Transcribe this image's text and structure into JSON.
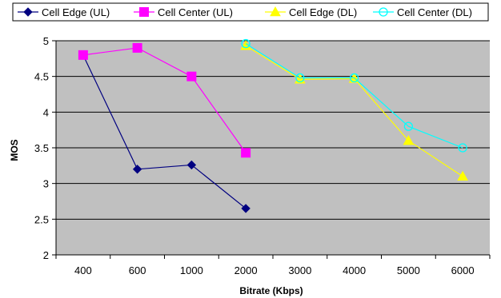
{
  "chart_data": {
    "type": "line",
    "categories": [
      "400",
      "600",
      "1000",
      "2000",
      "3000",
      "4000",
      "5000",
      "6000"
    ],
    "xlabel": "Bitrate (Kbps)",
    "ylabel": "MOS",
    "ylim": [
      2,
      5
    ],
    "yticks": [
      "2",
      "2.5",
      "3",
      "3.5",
      "4",
      "4.5",
      "5"
    ],
    "grid": true,
    "legend_position": "top",
    "plot_background": "#c0c0c0",
    "series": [
      {
        "name": "Cell Edge (UL)",
        "color": "#000080",
        "marker": "diamond-filled",
        "values": [
          4.8,
          3.2,
          3.26,
          2.65,
          null,
          null,
          null,
          null
        ]
      },
      {
        "name": "Cell Center (UL)",
        "color": "#ff00ff",
        "marker": "square-filled",
        "values": [
          4.8,
          4.9,
          4.5,
          3.43,
          null,
          null,
          null,
          null
        ]
      },
      {
        "name": "Cell Edge (DL)",
        "color": "#ffff00",
        "marker": "triangle-filled",
        "values": [
          null,
          null,
          null,
          4.93,
          4.46,
          4.47,
          3.6,
          3.1
        ]
      },
      {
        "name": "Cell Center (DL)",
        "color": "#00ffff",
        "marker": "circle-open",
        "values": [
          null,
          null,
          null,
          4.96,
          4.48,
          4.48,
          3.8,
          3.5
        ]
      }
    ]
  }
}
